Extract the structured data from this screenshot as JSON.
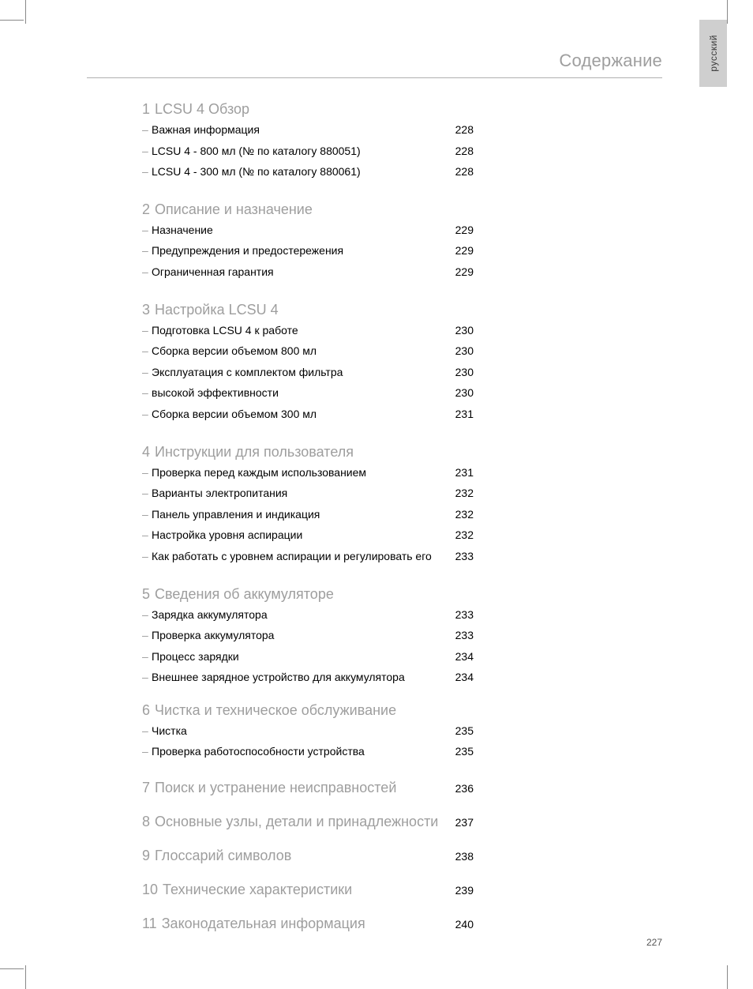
{
  "side_tab": "русский",
  "header_title": "Содержание",
  "page_number": "227",
  "sections": [
    {
      "num": "1",
      "title": "LCSU 4 Обзор",
      "page": "",
      "items": [
        {
          "label": "Важная информация",
          "page": "228"
        },
        {
          "label": "LCSU 4 - 800 мл (№ по каталогу 880051)",
          "page": "228"
        },
        {
          "label": "LCSU 4 - 300 мл (№ по каталогу 880061)",
          "page": "228"
        }
      ]
    },
    {
      "num": "2",
      "title": "Описание и назначение",
      "page": "",
      "items": [
        {
          "label": "Назначение",
          "page": "229"
        },
        {
          "label": "Предупреждения и предостережения",
          "page": "229"
        },
        {
          "label": "Ограниченная гарантия",
          "page": "229"
        }
      ]
    },
    {
      "num": "3",
      "title": "Настройка LCSU 4",
      "page": "",
      "items": [
        {
          "label": "Подготовка LCSU 4 к работе",
          "page": "230"
        },
        {
          "label": "Сборка версии объемом 800 мл",
          "page": "230"
        },
        {
          "label": "Эксплуатация с комплектом фильтра",
          "page": "230"
        },
        {
          "label": "высокой эффективности",
          "page": "230"
        },
        {
          "label": "Сборка версии объемом 300 мл",
          "page": "231"
        }
      ]
    },
    {
      "num": "4",
      "title": "Инструкции для пользователя",
      "page": "",
      "items": [
        {
          "label": "Проверка перед каждым использованием",
          "page": "231"
        },
        {
          "label": "Варианты электропитания",
          "page": "232"
        },
        {
          "label": "Панель управления и индикация",
          "page": "232"
        },
        {
          "label": "Настройка уровня аспирации",
          "page": "232"
        },
        {
          "label": "Как работать с уровнем аспирации и регулировать его",
          "page": "233"
        }
      ]
    },
    {
      "num": "5",
      "title": "Сведения об аккумуляторе",
      "page": "",
      "items": [
        {
          "label": "Зарядка аккумулятора",
          "page": "233"
        },
        {
          "label": "Проверка аккумулятора",
          "page": "233"
        },
        {
          "label": "Процесс зарядки",
          "page": "234"
        },
        {
          "label": "Внешнее зарядное устройство для аккумулятора",
          "page": "234"
        }
      ]
    },
    {
      "num": "6",
      "title": "Чистка и техническое обслуживание",
      "page": "",
      "items": [
        {
          "label": "Чистка",
          "page": "235"
        },
        {
          "label": "Проверка работоспособности устройства",
          "page": "235"
        }
      ]
    },
    {
      "num": "7",
      "title": "Поиск и устранение неисправностей",
      "page": "236",
      "items": []
    },
    {
      "num": "8",
      "title": "Основные узлы, детали и принадлежности",
      "page": "237",
      "items": []
    },
    {
      "num": "9",
      "title": "Глоссарий символов",
      "page": "238",
      "items": []
    },
    {
      "num": "10",
      "title": "Технические характеристики",
      "page": "239",
      "items": []
    },
    {
      "num": "11",
      "title": "Законодательная информация",
      "page": "240",
      "items": []
    }
  ]
}
